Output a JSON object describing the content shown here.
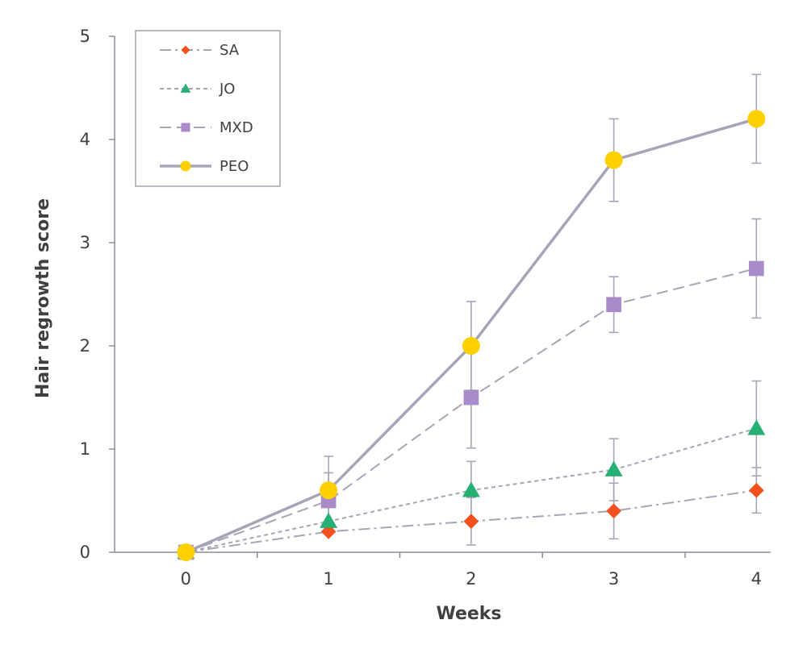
{
  "chart_data": {
    "type": "line",
    "title": "",
    "xlabel": "Weeks",
    "ylabel": "Hair regrowth score",
    "x": [
      0,
      1,
      2,
      3,
      4
    ],
    "xlim": [
      -0.5,
      4.1
    ],
    "ylim": [
      0,
      5
    ],
    "yticks": [
      0,
      1,
      2,
      3,
      4,
      5
    ],
    "xticks": [
      0,
      1,
      2,
      3,
      4
    ],
    "grid": false,
    "legend_position": "top-left",
    "series": [
      {
        "name": "SA",
        "values": [
          0,
          0.2,
          0.3,
          0.4,
          0.6
        ],
        "error": [
          0,
          0,
          0.23,
          0.27,
          0.22
        ],
        "color": "#f4511e",
        "marker": "diamond",
        "line_style": "dash-dot"
      },
      {
        "name": "JO",
        "values": [
          0,
          0.3,
          0.6,
          0.8,
          1.2
        ],
        "error": [
          0,
          0,
          0.28,
          0.3,
          0.46
        ],
        "color": "#26b074",
        "marker": "triangle",
        "line_style": "dotted"
      },
      {
        "name": "MXD",
        "values": [
          0,
          0.5,
          1.5,
          2.4,
          2.75
        ],
        "error": [
          0,
          0.27,
          0.49,
          0.27,
          0.48
        ],
        "color": "#a98bc9",
        "marker": "square",
        "line_style": "dashed"
      },
      {
        "name": "PEO",
        "values": [
          0,
          0.6,
          2.0,
          3.8,
          4.2
        ],
        "error": [
          0,
          0.33,
          0.43,
          0.4,
          0.43
        ],
        "color": "#ffd000",
        "marker": "circle",
        "line_style": "solid"
      }
    ],
    "line_color": "#a6a5b8",
    "axis_color": "#8c8c99"
  }
}
